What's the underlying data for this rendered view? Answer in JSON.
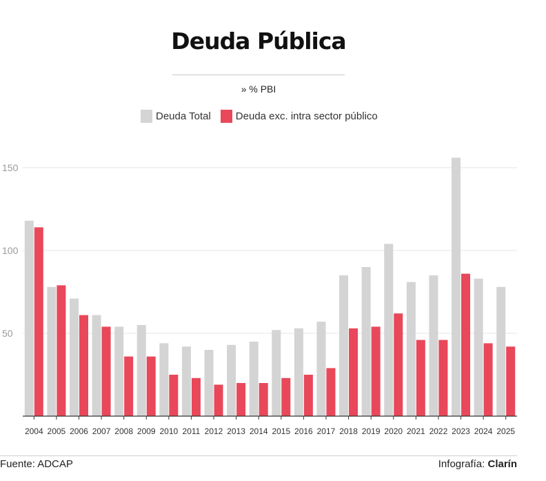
{
  "colors": {
    "total": "#d4d4d4",
    "exc": "#e8485a",
    "grid": "#e6e6e6",
    "axis": "#333333"
  },
  "chart_data": {
    "type": "bar",
    "title": "Deuda Pública",
    "subtitle": "» % PBI",
    "categories": [
      "2004",
      "2005",
      "2006",
      "2007",
      "2008",
      "2009",
      "2010",
      "2011",
      "2012",
      "2013",
      "2014",
      "2015",
      "2016",
      "2017",
      "2018",
      "2019",
      "2020",
      "2021",
      "2022",
      "2023",
      "2024",
      "2025"
    ],
    "series": [
      {
        "name": "Deuda Total",
        "values": [
          118,
          78,
          71,
          61,
          54,
          55,
          44,
          42,
          40,
          43,
          45,
          52,
          53,
          57,
          85,
          90,
          104,
          81,
          85,
          156,
          83,
          78
        ]
      },
      {
        "name": "Deuda exc. intra sector público",
        "values": [
          114,
          79,
          61,
          54,
          36,
          36,
          25,
          23,
          19,
          20,
          20,
          23,
          25,
          29,
          53,
          54,
          62,
          46,
          46,
          86,
          44,
          42
        ]
      }
    ],
    "yticks": [
      50,
      100,
      150
    ],
    "ylim": [
      0,
      160
    ],
    "grid": true,
    "legend_position": "top"
  },
  "footer": {
    "source": "Fuente: ADCAP",
    "credit_label": "Infografía:",
    "credit_brand": "Clarín"
  }
}
